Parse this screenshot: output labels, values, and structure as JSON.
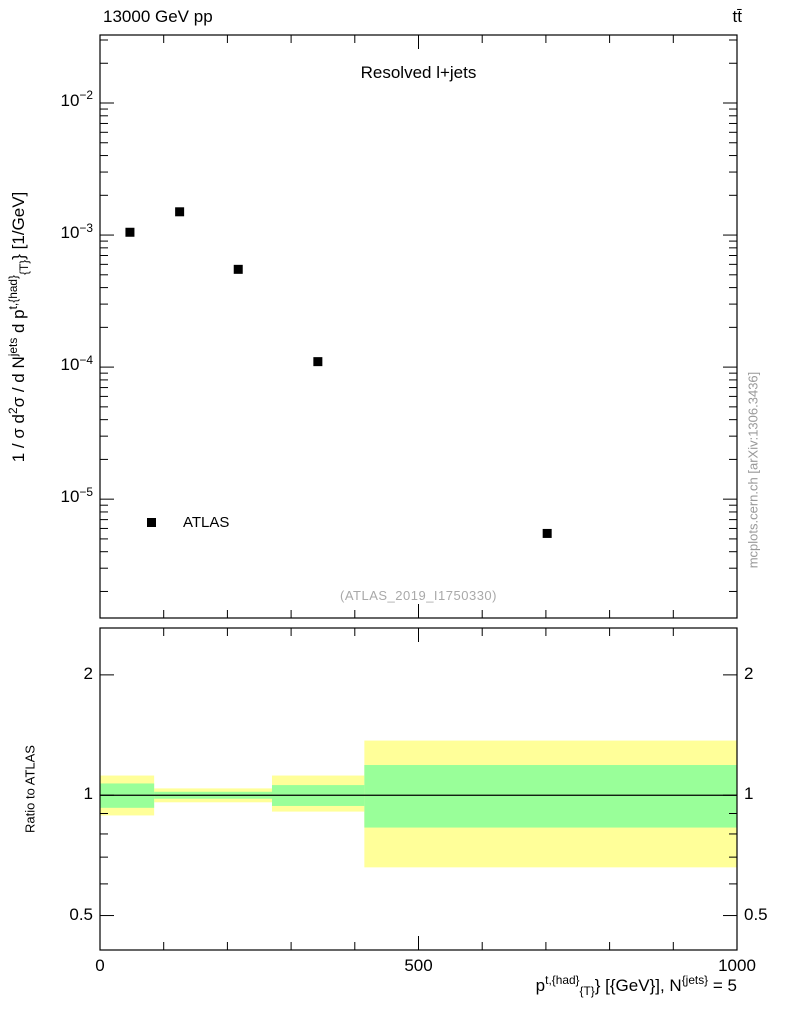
{
  "header": {
    "collision_label": "13000 GeV pp",
    "process_label": "tt̄"
  },
  "top_panel": {
    "title": "Resolved l+jets",
    "legend_label": "ATLAS",
    "reference_label": "(ATLAS_2019_I1750330)",
    "ylabel_text": "1 / σ d2σ / d Njets d pt,{had}{T}} [1/GeV]",
    "ylabel_parts": [
      {
        "t": "1 / σ d"
      },
      {
        "t": "2",
        "s": "sup"
      },
      {
        "t": "σ / d N"
      },
      {
        "t": "jets",
        "s": "sup"
      },
      {
        "t": " d p"
      },
      {
        "t": "t,{had}",
        "s": "sup"
      },
      {
        "t": "{T}",
        "s": "sub"
      },
      {
        "t": "} [1/GeV]"
      }
    ]
  },
  "ratio_panel": {
    "ylabel": "Ratio to ATLAS"
  },
  "xaxis": {
    "label_text": "pt,{had}{T}} [{GeV}], N{jets} = 5",
    "label_parts": [
      {
        "t": "p"
      },
      {
        "t": "t,{had}",
        "s": "sup"
      },
      {
        "t": "{T}",
        "s": "sub"
      },
      {
        "t": "} [{GeV}], N"
      },
      {
        "t": "{jets}",
        "s": "sup"
      },
      {
        "t": " = 5"
      }
    ]
  },
  "watermark": "mcplots.cern.ch [arXiv:1306.3436]",
  "chart_data": [
    {
      "type": "scatter",
      "panel": "main",
      "title": "Resolved l+jets",
      "yscale": "log",
      "xlim": [
        0,
        1000
      ],
      "ylim_log10": [
        -5.9,
        -1.485
      ],
      "xticks": [
        0,
        500,
        1000
      ],
      "xticks_minor_step": 100,
      "ytick_exponents": [
        -2,
        -3,
        -4,
        -5
      ],
      "series": [
        {
          "name": "ATLAS",
          "marker": "filled-square",
          "color": "#000000",
          "points": [
            [
              47,
              0.00105
            ],
            [
              125,
              0.0015
            ],
            [
              217,
              0.00055
            ],
            [
              342,
              0.00011
            ],
            [
              702,
              5.5e-06
            ]
          ]
        }
      ]
    },
    {
      "type": "ratio-bands",
      "panel": "ratio",
      "ylabel": "Ratio to ATLAS",
      "yscale": "log",
      "xlim": [
        0,
        1000
      ],
      "ylim": [
        0.41,
        2.62
      ],
      "yticks": [
        2,
        1,
        0.5
      ],
      "yticks_minor": [
        0.6,
        0.7,
        0.8,
        0.9
      ],
      "reference_line": 1,
      "band_colors": {
        "outer": "#ffff99",
        "inner": "#99ff99"
      },
      "bands": [
        {
          "x0": 0,
          "x1": 85,
          "outer": [
            0.89,
            1.12
          ],
          "inner": [
            0.93,
            1.07
          ]
        },
        {
          "x0": 85,
          "x1": 270,
          "outer": [
            0.96,
            1.04
          ],
          "inner": [
            0.98,
            1.02
          ]
        },
        {
          "x0": 270,
          "x1": 415,
          "outer": [
            0.91,
            1.12
          ],
          "inner": [
            0.94,
            1.06
          ]
        },
        {
          "x0": 415,
          "x1": 1000,
          "outer": [
            0.66,
            1.37
          ],
          "inner": [
            0.83,
            1.19
          ]
        }
      ]
    }
  ]
}
